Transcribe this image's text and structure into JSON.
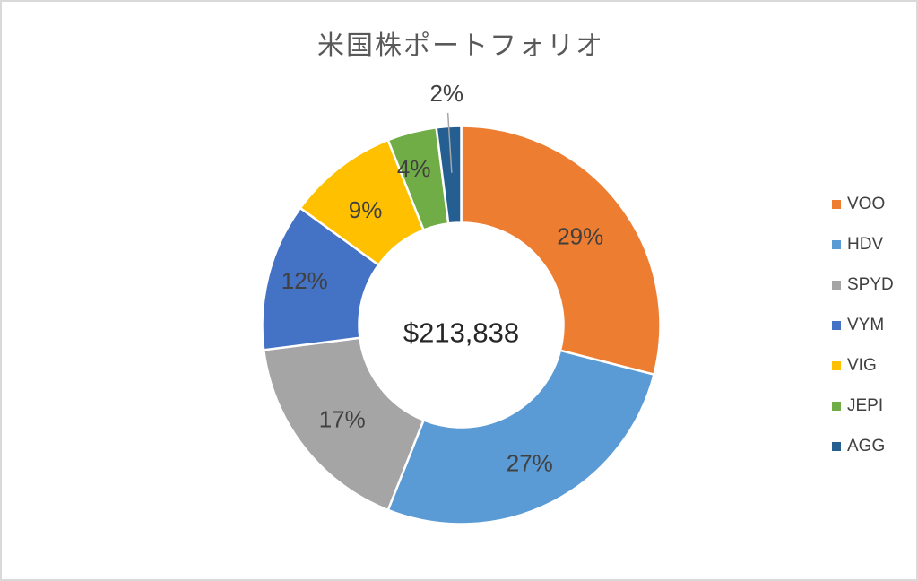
{
  "window": {
    "background": "#FFFFFF",
    "frame_border_color": "#D9D9D9"
  },
  "chart_data": {
    "type": "pie",
    "subtype": "donut",
    "title": "米国株ポートフォリオ",
    "center_label": "$213,838",
    "unit": "%",
    "categories": [
      "VOO",
      "HDV",
      "SPYD",
      "VYM",
      "VIG",
      "JEPI",
      "AGG"
    ],
    "values": [
      29,
      27,
      17,
      12,
      9,
      4,
      2
    ],
    "series": [
      {
        "name": "VOO",
        "percent": 29,
        "label": "29%",
        "color": "#ED7D31",
        "label_offset": [
          0,
          4
        ]
      },
      {
        "name": "HDV",
        "percent": 27,
        "label": "27%",
        "color": "#5B9BD5",
        "label_offset": [
          0,
          4
        ]
      },
      {
        "name": "SPYD",
        "percent": 17,
        "label": "17%",
        "color": "#A5A5A5",
        "label_offset": [
          0,
          2
        ]
      },
      {
        "name": "VYM",
        "percent": 12,
        "label": "12%",
        "color": "#4472C4",
        "label_offset": [
          -12,
          -8
        ]
      },
      {
        "name": "VIG",
        "percent": 9,
        "label": "9%",
        "color": "#FFC000",
        "label_offset": [
          -4,
          4
        ]
      },
      {
        "name": "JEPI",
        "percent": 4,
        "label": "4%",
        "color": "#70AD47",
        "label_offset": [
          -11,
          -12
        ]
      },
      {
        "name": "AGG",
        "percent": 2,
        "label": "2%",
        "color": "#255E91",
        "label_outside": true
      }
    ],
    "legend_position": "right",
    "legend_entries": [
      "VOO",
      "HDV",
      "SPYD",
      "VYM",
      "VIG",
      "JEPI",
      "AGG"
    ],
    "start_angle_deg": 0,
    "direction": "clockwise",
    "hole_ratio": 0.51,
    "grid": false,
    "colors": {
      "title_text": "#595959",
      "slice_label_text": "#404040",
      "center_text": "#262626",
      "legend_text": "#404040",
      "leader_line": "#A6A6A6",
      "slice_border": "#FFFFFF"
    }
  }
}
